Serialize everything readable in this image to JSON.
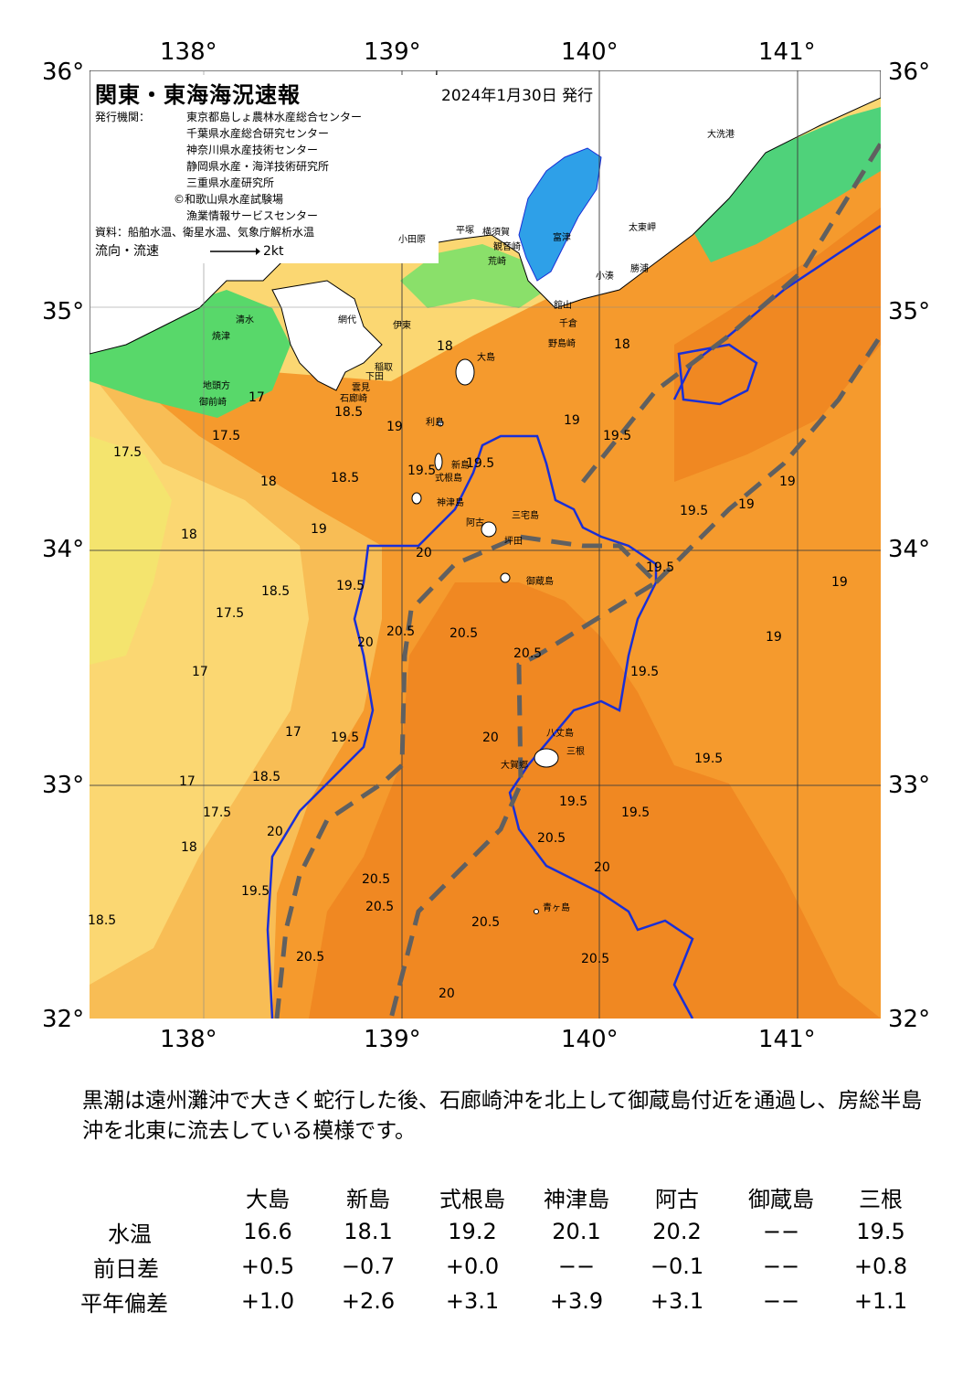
{
  "header": {
    "title": "関東・東海海況速報",
    "issue_date": "2024年1月30日 発行",
    "issuer_label": "発行機関：",
    "issuers": [
      "東京都島しょ農林水産総合センター",
      "千葉県水産総合研究センター",
      "神奈川県水産技術センター",
      "静岡県水産・海洋技術研究所",
      "三重県水産研究所",
      "©和歌山県水産試験場",
      "漁業情報サービスセンター"
    ],
    "source": "資料：船舶水温、衛星水温、気象庁解析水温",
    "current_legend": "流向・流速",
    "current_scale": "2kt"
  },
  "axes": {
    "lon_top": [
      "138°",
      "139°",
      "140°",
      "141°"
    ],
    "lon_bottom": [
      "138°",
      "139°",
      "140°",
      "141°"
    ],
    "lat_left": [
      "36°",
      "35°",
      "34°",
      "33°",
      "32°"
    ],
    "lat_right": [
      "36°",
      "35°",
      "34°",
      "33°",
      "32°"
    ]
  },
  "places": [
    "大洗港",
    "太東岬",
    "小湊",
    "勝浦",
    "館山",
    "千倉",
    "野島崎",
    "富津",
    "観音崎",
    "荒崎",
    "横須賀",
    "平塚",
    "小田原",
    "網代",
    "伊東",
    "稲取",
    "下田",
    "石廊崎",
    "雲見",
    "清水",
    "焼津",
    "御前崎",
    "地頭方",
    "大島",
    "利島",
    "新島",
    "式根島",
    "神津島",
    "三宅島",
    "阿古",
    "坪田",
    "御蔵島",
    "八丈島",
    "三根",
    "大賀郷",
    "青ヶ島"
  ],
  "isotherms": [
    "17.5",
    "17",
    "17.5",
    "18",
    "18.5",
    "18",
    "17.5",
    "19",
    "18.5",
    "19.5",
    "18.5",
    "19",
    "20",
    "19.5",
    "18",
    "19.5",
    "19",
    "18",
    "19.5",
    "20.5",
    "20.5",
    "20",
    "20.5",
    "19.5",
    "19",
    "19.5",
    "19.5",
    "19",
    "19",
    "19.5",
    "19",
    "19.5",
    "20",
    "19.5",
    "20.5",
    "20",
    "20.5",
    "20.5",
    "20.5",
    "20.5",
    "20.5",
    "20",
    "19.5",
    "18.5",
    "17.5",
    "18",
    "17",
    "18.5",
    "19.5",
    "17",
    "17",
    "20"
  ],
  "colors": {
    "kuroshio_axis": "#606060",
    "isotherm_20": "#1a2fd6",
    "water_warm": "#f59a2d",
    "water_cool": "#f4e46e",
    "water_cold": "#58d86a",
    "bay": "#2ea0e8"
  },
  "summary": "黒潮は遠州灘沖で大きく蛇行した後、石廊崎沖を北上して御蔵島付近を通過し、房総半島沖を北東に流去している模様です。",
  "table": {
    "columns": [
      "大島",
      "新島",
      "式根島",
      "神津島",
      "阿古",
      "御蔵島",
      "三根"
    ],
    "rows": [
      {
        "label": "水温",
        "values": [
          "16.6",
          "18.1",
          "19.2",
          "20.1",
          "20.2",
          "−−",
          "19.5"
        ]
      },
      {
        "label": "前日差",
        "values": [
          "+0.5",
          "−0.7",
          "+0.0",
          "−−",
          "−0.1",
          "−−",
          "+0.8"
        ]
      },
      {
        "label": "平年偏差",
        "values": [
          "+1.0",
          "+2.6",
          "+3.1",
          "+3.9",
          "+3.1",
          "−−",
          "+1.1"
        ]
      }
    ]
  }
}
